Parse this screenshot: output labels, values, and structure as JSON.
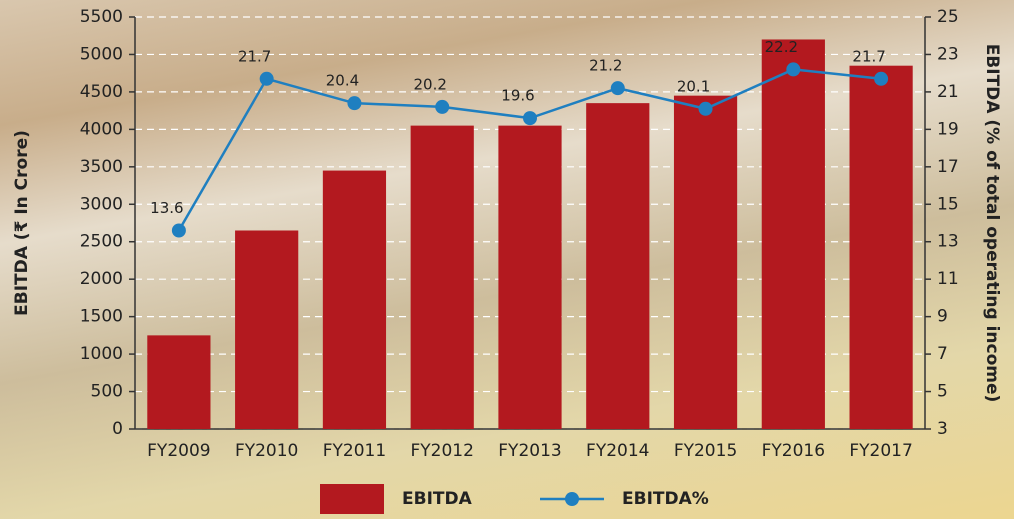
{
  "chart_data": {
    "type": "bar-line",
    "y_label": "EBITDA (₹ In Crore)",
    "y2_label": "EBITDA (% of total operating income)",
    "categories": [
      "FY2009",
      "FY2010",
      "FY2011",
      "FY2012",
      "FY2013",
      "FY2014",
      "FY2015",
      "FY2016",
      "FY2017"
    ],
    "series": [
      {
        "name": "EBITDA",
        "type": "bar",
        "color": "#b3191f",
        "values": [
          1250,
          2650,
          3450,
          4050,
          4050,
          4350,
          4450,
          5200,
          4850
        ]
      },
      {
        "name": "EBITDA%",
        "type": "line",
        "axis": "y2",
        "color": "#1f7fc0",
        "values": [
          13.6,
          21.7,
          20.4,
          20.2,
          19.6,
          21.2,
          20.1,
          22.2,
          21.7
        ]
      }
    ],
    "ylim": [
      0,
      5500
    ],
    "yticks": [
      0,
      500,
      1000,
      1500,
      2000,
      2500,
      3000,
      3500,
      4000,
      4500,
      5000,
      5500
    ],
    "y2lim": [
      3,
      25
    ],
    "y2ticks": [
      3,
      5,
      7,
      9,
      11,
      13,
      15,
      17,
      19,
      21,
      23,
      25
    ],
    "grid": true
  }
}
